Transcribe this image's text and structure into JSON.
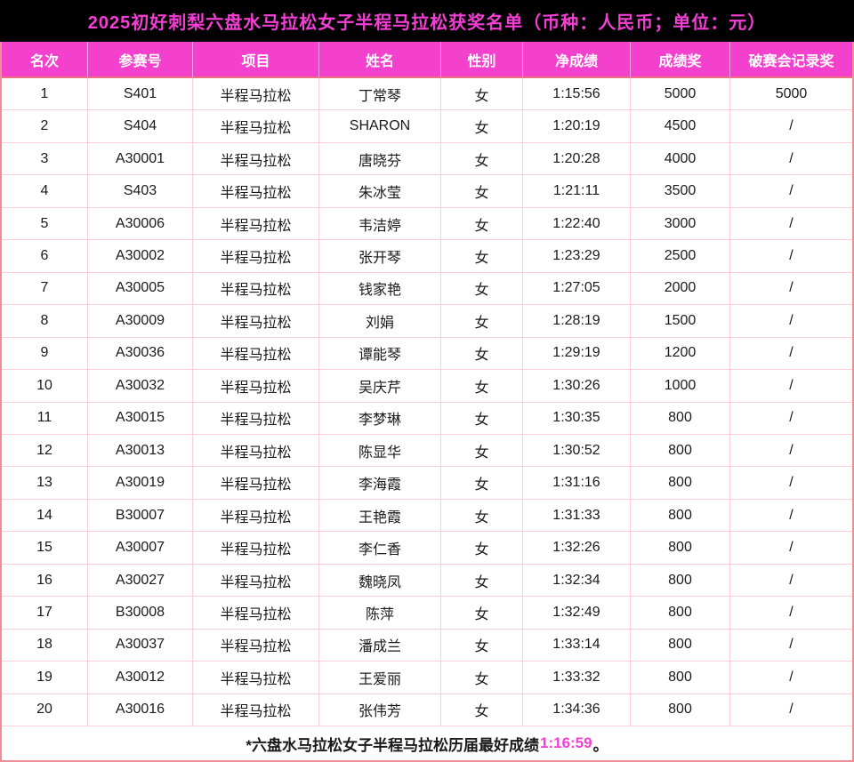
{
  "title": "2025初好刺梨六盘水马拉松女子半程马拉松获奖名单（币种：人民币；单位：元）",
  "colors": {
    "title_bar_bg": "#000000",
    "title_text": "#f33fd3",
    "header_bg": "#f341ce",
    "header_text": "#ffffff",
    "grid_line": "#fbcfda",
    "outer_border": "#ef8d99",
    "record_highlight": "#f33fd3",
    "body_text": "#1a1a1a"
  },
  "table": {
    "columns": [
      "名次",
      "参赛号",
      "项目",
      "姓名",
      "性别",
      "净成绩",
      "成绩奖",
      "破赛会记录奖"
    ],
    "rows": [
      [
        "1",
        "S401",
        "半程马拉松",
        "丁常琴",
        "女",
        "1:15:56",
        "5000",
        "5000"
      ],
      [
        "2",
        "S404",
        "半程马拉松",
        "SHARON",
        "女",
        "1:20:19",
        "4500",
        "/"
      ],
      [
        "3",
        "A30001",
        "半程马拉松",
        "唐晓芬",
        "女",
        "1:20:28",
        "4000",
        "/"
      ],
      [
        "4",
        "S403",
        "半程马拉松",
        "朱冰莹",
        "女",
        "1:21:11",
        "3500",
        "/"
      ],
      [
        "5",
        "A30006",
        "半程马拉松",
        "韦洁婷",
        "女",
        "1:22:40",
        "3000",
        "/"
      ],
      [
        "6",
        "A30002",
        "半程马拉松",
        "张开琴",
        "女",
        "1:23:29",
        "2500",
        "/"
      ],
      [
        "7",
        "A30005",
        "半程马拉松",
        "钱家艳",
        "女",
        "1:27:05",
        "2000",
        "/"
      ],
      [
        "8",
        "A30009",
        "半程马拉松",
        "刘娟",
        "女",
        "1:28:19",
        "1500",
        "/"
      ],
      [
        "9",
        "A30036",
        "半程马拉松",
        "谭能琴",
        "女",
        "1:29:19",
        "1200",
        "/"
      ],
      [
        "10",
        "A30032",
        "半程马拉松",
        "吴庆芹",
        "女",
        "1:30:26",
        "1000",
        "/"
      ],
      [
        "11",
        "A30015",
        "半程马拉松",
        "李梦琳",
        "女",
        "1:30:35",
        "800",
        "/"
      ],
      [
        "12",
        "A30013",
        "半程马拉松",
        "陈显华",
        "女",
        "1:30:52",
        "800",
        "/"
      ],
      [
        "13",
        "A30019",
        "半程马拉松",
        "李海霞",
        "女",
        "1:31:16",
        "800",
        "/"
      ],
      [
        "14",
        "B30007",
        "半程马拉松",
        "王艳霞",
        "女",
        "1:31:33",
        "800",
        "/"
      ],
      [
        "15",
        "A30007",
        "半程马拉松",
        "李仁香",
        "女",
        "1:32:26",
        "800",
        "/"
      ],
      [
        "16",
        "A30027",
        "半程马拉松",
        "魏晓凤",
        "女",
        "1:32:34",
        "800",
        "/"
      ],
      [
        "17",
        "B30008",
        "半程马拉松",
        "陈萍",
        "女",
        "1:32:49",
        "800",
        "/"
      ],
      [
        "18",
        "A30037",
        "半程马拉松",
        "潘成兰",
        "女",
        "1:33:14",
        "800",
        "/"
      ],
      [
        "19",
        "A30012",
        "半程马拉松",
        "王爱丽",
        "女",
        "1:33:32",
        "800",
        "/"
      ],
      [
        "20",
        "A30016",
        "半程马拉松",
        "张伟芳",
        "女",
        "1:34:36",
        "800",
        "/"
      ]
    ]
  },
  "footnote": {
    "prefix": "*六盘水马拉松女子半程马拉松历届最好成绩",
    "record": "1:16:59",
    "suffix": "。"
  }
}
